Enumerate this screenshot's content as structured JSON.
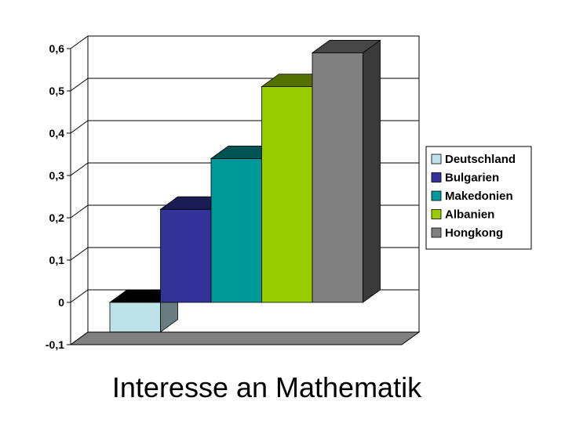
{
  "chart_data": {
    "type": "bar",
    "title": "Interesse an Mathematik",
    "xlabel": "",
    "ylabel": "",
    "ylim": [
      -0.1,
      0.6
    ],
    "yticks": [
      "-0,1",
      "0",
      "0,1",
      "0,2",
      "0,3",
      "0,4",
      "0,5",
      "0,6"
    ],
    "grid": true,
    "legend_position": "right",
    "three_d": true,
    "series": [
      {
        "name": "Deutschland",
        "value": -0.07,
        "color": "#BDE3E8"
      },
      {
        "name": "Bulgarien",
        "value": 0.22,
        "color": "#333399"
      },
      {
        "name": "Makedonien",
        "value": 0.34,
        "color": "#009999"
      },
      {
        "name": "Albanien",
        "value": 0.51,
        "color": "#99CC00"
      },
      {
        "name": "Hongkong",
        "value": 0.59,
        "color": "#808080"
      }
    ]
  }
}
